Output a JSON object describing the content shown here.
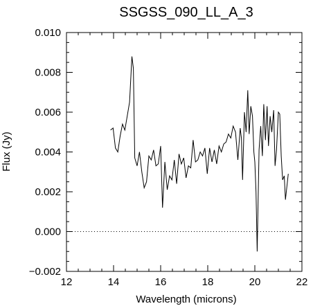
{
  "chart_data": {
    "type": "line",
    "title": "SSGSS_090_LL_A_3",
    "xlabel": "Wavelength (microns)",
    "ylabel": "Flux (Jy)",
    "xlim": [
      12,
      22
    ],
    "ylim": [
      -0.002,
      0.01
    ],
    "xticks": [
      12,
      14,
      16,
      18,
      20,
      22
    ],
    "xtick_labels": [
      "12",
      "14",
      "16",
      "18",
      "20",
      "22"
    ],
    "yticks": [
      -0.002,
      0.0,
      0.002,
      0.004,
      0.006,
      0.008,
      0.01
    ],
    "ytick_labels": [
      "−0.002",
      "0.000",
      "0.002",
      "0.004",
      "0.006",
      "0.008",
      "0.010"
    ],
    "reference_line": {
      "y": 0.0,
      "style": "dotted"
    },
    "grid": false,
    "series": [
      {
        "x": [
          13.87,
          13.98,
          14.08,
          14.18,
          14.28,
          14.38,
          14.48,
          14.58,
          14.68,
          14.78,
          14.84,
          14.9,
          15.0,
          15.1,
          15.2,
          15.3,
          15.4,
          15.5,
          15.6,
          15.7,
          15.8,
          15.9,
          16.0,
          16.08,
          16.18,
          16.28,
          16.38,
          16.48,
          16.58,
          16.68,
          16.78,
          16.88,
          16.98,
          17.08,
          17.18,
          17.28,
          17.38,
          17.48,
          17.58,
          17.68,
          17.78,
          17.88,
          17.98,
          18.08,
          18.18,
          18.28,
          18.38,
          18.48,
          18.58,
          18.68,
          18.78,
          18.88,
          18.98,
          19.08,
          19.18,
          19.28,
          19.38,
          19.43,
          19.48,
          19.56,
          19.63,
          19.7,
          19.76,
          19.83,
          19.9,
          19.96,
          20.0,
          20.05,
          20.1,
          20.18,
          20.25,
          20.32,
          20.38,
          20.45,
          20.52,
          20.58,
          20.65,
          20.72,
          20.8,
          20.86,
          20.92,
          21.0,
          21.06,
          21.12,
          21.18,
          21.25,
          21.3,
          21.42
        ],
        "y": [
          0.0051,
          0.0052,
          0.0042,
          0.004,
          0.0048,
          0.0054,
          0.0051,
          0.0058,
          0.0065,
          0.0088,
          0.0082,
          0.0037,
          0.0033,
          0.004,
          0.003,
          0.0022,
          0.0025,
          0.0038,
          0.0036,
          0.0041,
          0.0033,
          0.0034,
          0.0043,
          0.0012,
          0.0035,
          0.0021,
          0.0028,
          0.0026,
          0.0036,
          0.0024,
          0.0039,
          0.0034,
          0.0037,
          0.0027,
          0.0033,
          0.0032,
          0.0046,
          0.0035,
          0.0036,
          0.004,
          0.0038,
          0.0042,
          0.0029,
          0.0042,
          0.0035,
          0.0041,
          0.0034,
          0.0043,
          0.004,
          0.0044,
          0.0045,
          0.0049,
          0.0047,
          0.0053,
          0.005,
          0.0036,
          0.0052,
          0.0047,
          0.0026,
          0.006,
          0.005,
          0.0071,
          0.0049,
          0.0063,
          0.0058,
          0.004,
          0.0035,
          0.002,
          -0.001,
          0.0041,
          0.0053,
          0.0038,
          0.0064,
          0.0046,
          0.0063,
          0.0043,
          0.0058,
          0.005,
          0.0061,
          0.0033,
          0.0041,
          0.006,
          0.0059,
          0.0038,
          0.0026,
          0.0028,
          0.0016,
          0.0029
        ]
      }
    ]
  }
}
